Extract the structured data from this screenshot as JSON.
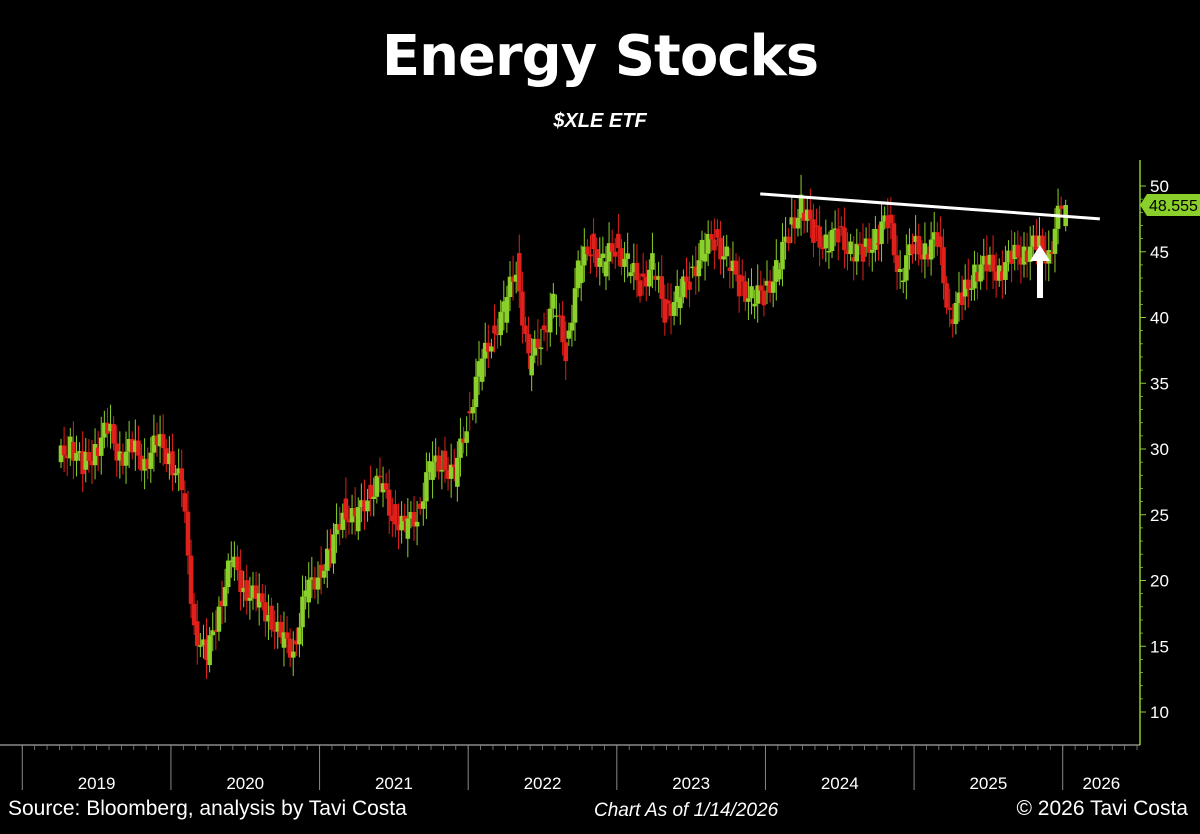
{
  "chart_data": {
    "type": "candlestick",
    "title": "Energy Stocks",
    "subtitle": "$XLE ETF",
    "y_axis_position": "right",
    "ylim": [
      7.5,
      52
    ],
    "y_ticks": [
      10,
      15,
      20,
      25,
      30,
      35,
      40,
      45,
      50
    ],
    "x_tick_labels": [
      "2019",
      "2020",
      "2021",
      "2022",
      "2023",
      "2024",
      "2025",
      "2026"
    ],
    "last_price_label": "48.555",
    "colors": {
      "up": "#8bd02a",
      "down": "#e0201b",
      "axis": "#8bd02a",
      "last_price_bg": "#8bd02a",
      "trendline": "#ffffff"
    },
    "series": [
      {
        "values": [
          {
            "t": "2019-04",
            "c": 29.0
          },
          {
            "t": "2019-05",
            "c": 30.5
          },
          {
            "t": "2019-06",
            "c": 28.5
          },
          {
            "t": "2019-07",
            "c": 30.0
          },
          {
            "t": "2019-08",
            "c": 31.5
          },
          {
            "t": "2019-09",
            "c": 29.5
          },
          {
            "t": "2019-10",
            "c": 30.0
          },
          {
            "t": "2019-11",
            "c": 29.0
          },
          {
            "t": "2019-12",
            "c": 30.5
          },
          {
            "t": "2020-01",
            "c": 29.5
          },
          {
            "t": "2020-02",
            "c": 27.0
          },
          {
            "t": "2020-03",
            "c": 16.5
          },
          {
            "t": "2020-04",
            "c": 14.0
          },
          {
            "t": "2020-05",
            "c": 18.0
          },
          {
            "t": "2020-06",
            "c": 21.5
          },
          {
            "t": "2020-07",
            "c": 19.5
          },
          {
            "t": "2020-08",
            "c": 18.5
          },
          {
            "t": "2020-09",
            "c": 17.5
          },
          {
            "t": "2020-10",
            "c": 15.5
          },
          {
            "t": "2020-11",
            "c": 14.8
          },
          {
            "t": "2020-12",
            "c": 19.0
          },
          {
            "t": "2021-01",
            "c": 20.5
          },
          {
            "t": "2021-02",
            "c": 22.0
          },
          {
            "t": "2021-03",
            "c": 25.5
          },
          {
            "t": "2021-04",
            "c": 24.5
          },
          {
            "t": "2021-05",
            "c": 26.5
          },
          {
            "t": "2021-06",
            "c": 27.5
          },
          {
            "t": "2021-07",
            "c": 25.0
          },
          {
            "t": "2021-08",
            "c": 24.0
          },
          {
            "t": "2021-09",
            "c": 25.0
          },
          {
            "t": "2021-10",
            "c": 28.5
          },
          {
            "t": "2021-11",
            "c": 29.0
          },
          {
            "t": "2021-12",
            "c": 28.0
          },
          {
            "t": "2022-01",
            "c": 32.0
          },
          {
            "t": "2022-02",
            "c": 36.0
          },
          {
            "t": "2022-03",
            "c": 38.5
          },
          {
            "t": "2022-04",
            "c": 40.5
          },
          {
            "t": "2022-05",
            "c": 44.0
          },
          {
            "t": "2022-06",
            "c": 36.5
          },
          {
            "t": "2022-07",
            "c": 38.5
          },
          {
            "t": "2022-08",
            "c": 41.0
          },
          {
            "t": "2022-09",
            "c": 37.5
          },
          {
            "t": "2022-10",
            "c": 43.5
          },
          {
            "t": "2022-11",
            "c": 45.5
          },
          {
            "t": "2022-12",
            "c": 44.0
          },
          {
            "t": "2023-01",
            "c": 45.5
          },
          {
            "t": "2023-02",
            "c": 44.0
          },
          {
            "t": "2023-03",
            "c": 42.5
          },
          {
            "t": "2023-04",
            "c": 44.0
          },
          {
            "t": "2023-05",
            "c": 40.5
          },
          {
            "t": "2023-06",
            "c": 41.5
          },
          {
            "t": "2023-07",
            "c": 43.0
          },
          {
            "t": "2023-08",
            "c": 45.0
          },
          {
            "t": "2023-09",
            "c": 46.0
          },
          {
            "t": "2023-10",
            "c": 44.5
          },
          {
            "t": "2023-11",
            "c": 42.5
          },
          {
            "t": "2023-12",
            "c": 41.5
          },
          {
            "t": "2024-01",
            "c": 41.8
          },
          {
            "t": "2024-02",
            "c": 43.5
          },
          {
            "t": "2024-03",
            "c": 46.5
          },
          {
            "t": "2024-04",
            "c": 48.5
          },
          {
            "t": "2024-05",
            "c": 46.5
          },
          {
            "t": "2024-06",
            "c": 45.5
          },
          {
            "t": "2024-07",
            "c": 46.5
          },
          {
            "t": "2024-08",
            "c": 45.0
          },
          {
            "t": "2024-09",
            "c": 45.0
          },
          {
            "t": "2024-10",
            "c": 46.0
          },
          {
            "t": "2024-11",
            "c": 47.5
          },
          {
            "t": "2024-12",
            "c": 43.0
          },
          {
            "t": "2025-01",
            "c": 45.5
          },
          {
            "t": "2025-02",
            "c": 45.0
          },
          {
            "t": "2025-03",
            "c": 46.0
          },
          {
            "t": "2025-04",
            "c": 40.0
          },
          {
            "t": "2025-05",
            "c": 41.5
          },
          {
            "t": "2025-06",
            "c": 43.5
          },
          {
            "t": "2025-07",
            "c": 44.0
          },
          {
            "t": "2025-08",
            "c": 43.5
          },
          {
            "t": "2025-09",
            "c": 44.5
          },
          {
            "t": "2025-10",
            "c": 45.0
          },
          {
            "t": "2025-11",
            "c": 45.5
          },
          {
            "t": "2025-12",
            "c": 44.8
          },
          {
            "t": "2026-01",
            "c": 48.555
          }
        ]
      }
    ],
    "annotations": {
      "trendline": {
        "from": {
          "t": "2024-03",
          "y": 49.4
        },
        "to": {
          "t": "2026-04",
          "y": 47.5
        }
      },
      "arrow": {
        "direction": "up",
        "color": "#ffffff"
      }
    }
  },
  "footer": {
    "source": "Source: Bloomberg, analysis by Tavi Costa",
    "as_of": "Chart As of 1/14/2026",
    "copyright": "© 2026 Tavi Costa"
  }
}
